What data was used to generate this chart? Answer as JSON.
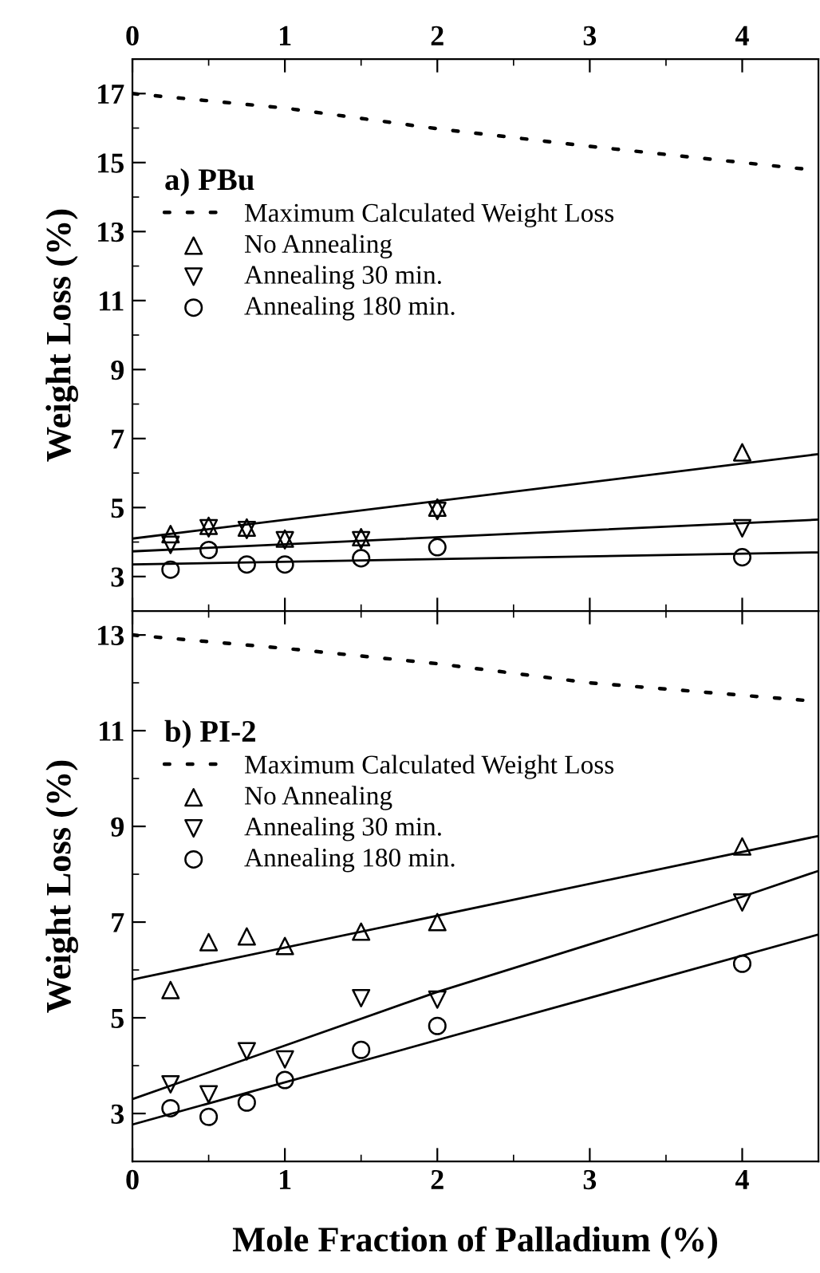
{
  "chart_data": [
    {
      "type": "scatter",
      "legend_title": "a) PBu",
      "ylabel": "Weight Loss (%)",
      "xlim": [
        0,
        4.5
      ],
      "xticks": [
        0,
        1,
        2,
        3,
        4
      ],
      "ylim": [
        2,
        18
      ],
      "yticks": [
        3,
        5,
        7,
        9,
        11,
        13,
        15,
        17
      ],
      "legend": "top left",
      "grid": false,
      "series": [
        {
          "name": "Maximum Calculated Weight Loss",
          "type": "line",
          "line_style": "dotted",
          "marker": "none",
          "color": "#000000",
          "x": [
            0,
            1,
            2,
            3,
            4,
            4.5
          ],
          "values": [
            17.0,
            16.58,
            15.98,
            15.47,
            15.0,
            14.77
          ]
        },
        {
          "name": "No Annealing",
          "marker": "triangle",
          "color": "#000000",
          "x": [
            0.25,
            0.5,
            0.75,
            1,
            1.5,
            2,
            4
          ],
          "values": [
            4.23,
            4.47,
            4.42,
            4.1,
            4.14,
            5.0,
            6.6
          ]
        },
        {
          "name": "Annealing 30 min.",
          "marker": "triangle_down",
          "color": "#000000",
          "x": [
            0.25,
            0.5,
            0.75,
            1,
            1.5,
            2,
            4
          ],
          "values": [
            3.92,
            4.4,
            4.35,
            4.05,
            4.05,
            4.9,
            4.4
          ]
        },
        {
          "name": "Annealing 180 min.",
          "marker": "circle",
          "color": "#000000",
          "x": [
            0.25,
            0.5,
            0.75,
            1,
            1.5,
            2,
            4
          ],
          "values": [
            3.2,
            3.77,
            3.35,
            3.35,
            3.53,
            3.85,
            3.56
          ]
        },
        {
          "type": "line",
          "line_style": "solid",
          "marker": "none",
          "color": "#000000",
          "x": [
            0,
            4.5
          ],
          "values": [
            4.1,
            6.55
          ]
        },
        {
          "type": "line",
          "line_style": "solid",
          "marker": "none",
          "color": "#000000",
          "x": [
            0,
            4.5
          ],
          "values": [
            3.73,
            4.65
          ]
        },
        {
          "type": "line",
          "line_style": "solid",
          "marker": "none",
          "color": "#000000",
          "x": [
            0,
            4.5
          ],
          "values": [
            3.35,
            3.7
          ]
        }
      ]
    },
    {
      "type": "scatter",
      "legend_title": "b) PI-2",
      "xlabel": "Mole Fraction of Palladium (%)",
      "ylabel": "Weight Loss (%)",
      "xlim": [
        0,
        4.5
      ],
      "xticks": [
        0,
        1,
        2,
        3,
        4
      ],
      "ylim": [
        2,
        13.5
      ],
      "yticks": [
        3,
        5,
        7,
        9,
        11,
        13
      ],
      "legend": "top left",
      "grid": false,
      "series": [
        {
          "name": "Maximum Calculated Weight Loss",
          "type": "line",
          "line_style": "dotted",
          "marker": "none",
          "color": "#000000",
          "x": [
            0,
            1,
            2,
            3,
            4,
            4.5
          ],
          "values": [
            13.0,
            12.72,
            12.4,
            12.0,
            11.74,
            11.61
          ]
        },
        {
          "name": "No Annealing",
          "marker": "triangle",
          "color": "#000000",
          "x": [
            0.25,
            0.5,
            0.75,
            1,
            1.5,
            2,
            4
          ],
          "values": [
            5.58,
            6.58,
            6.7,
            6.5,
            6.8,
            7.0,
            8.58
          ]
        },
        {
          "name": "Annealing 30 min.",
          "marker": "triangle_down",
          "color": "#000000",
          "x": [
            0.25,
            0.5,
            0.75,
            1,
            1.5,
            2,
            4
          ],
          "values": [
            3.61,
            3.4,
            4.3,
            4.13,
            5.41,
            5.38,
            7.41
          ]
        },
        {
          "name": "Annealing 180 min.",
          "marker": "circle",
          "color": "#000000",
          "x": [
            0.25,
            0.5,
            0.75,
            1,
            1.5,
            2,
            4
          ],
          "values": [
            3.11,
            2.93,
            3.23,
            3.7,
            4.33,
            4.83,
            6.13
          ]
        },
        {
          "type": "line",
          "line_style": "solid",
          "marker": "none",
          "color": "#000000",
          "x": [
            0,
            4.5
          ],
          "values": [
            5.8,
            8.8
          ]
        },
        {
          "type": "line",
          "line_style": "solid",
          "marker": "none",
          "color": "#000000",
          "x": [
            0,
            2,
            4,
            4.5
          ],
          "values": [
            3.3,
            5.54,
            7.53,
            8.07
          ]
        },
        {
          "type": "line",
          "line_style": "solid",
          "marker": "none",
          "color": "#000000",
          "x": [
            0,
            4.5
          ],
          "values": [
            2.77,
            6.74
          ]
        }
      ]
    }
  ]
}
